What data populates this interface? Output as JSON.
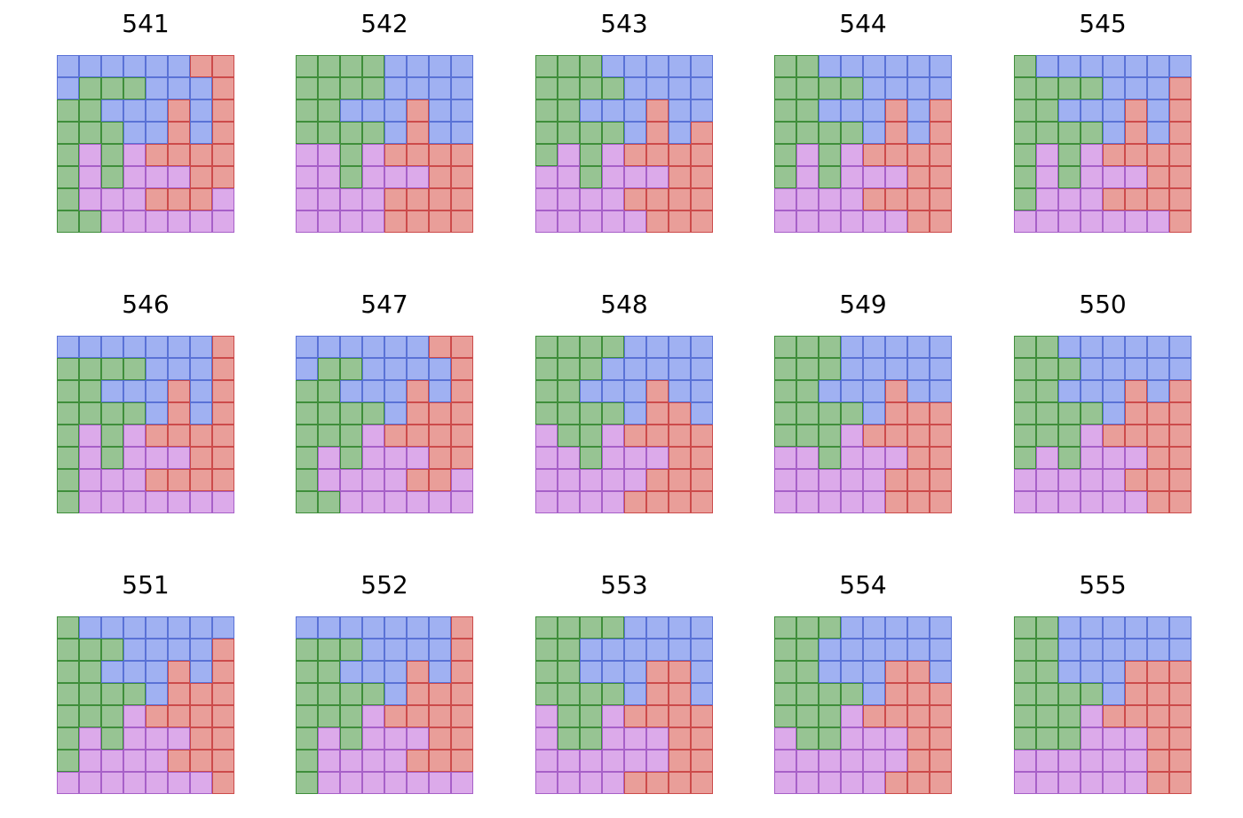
{
  "colors": {
    "B": {
      "fill": "#a0b1f2",
      "stroke": "#5a72d6"
    },
    "G": {
      "fill": "#97c493",
      "stroke": "#3f8e3b"
    },
    "R": {
      "fill": "#e99e99",
      "stroke": "#cc4b4b"
    },
    "P": {
      "fill": "#dcaaea",
      "stroke": "#a760c8"
    }
  },
  "panels": [
    {
      "title": "541",
      "grid": [
        "BBBBBBRR",
        "BGGGBBBR",
        "GGBBBRBR",
        "GGGBBRBR",
        "GPGPRRRR",
        "GPGPPPRR",
        "GPPPRRRP",
        "GGPPPPPP"
      ]
    },
    {
      "title": "542",
      "grid": [
        "GGGGBBBB",
        "GGGGBBBB",
        "GGBBBRBB",
        "GGGGBRBB",
        "PPGPRRRR",
        "PPGPPPRR",
        "PPPPRRRR",
        "PPPPRRRR"
      ]
    },
    {
      "title": "543",
      "grid": [
        "GGGBBBBB",
        "GGGGBBBB",
        "GGBBBRBB",
        "GGGGBRBR",
        "GPGPRRRR",
        "PPGPPPRR",
        "PPPPRRRR",
        "PPPPPRRR"
      ]
    },
    {
      "title": "544",
      "grid": [
        "GGBBBBBB",
        "GGGGBBBB",
        "GGBBBRBR",
        "GGGGBRBR",
        "GPGPRRRR",
        "GPGPPPRR",
        "PPPPRRRR",
        "PPPPPPRR"
      ]
    },
    {
      "title": "545",
      "grid": [
        "GBBBBBBB",
        "GGGGBBBR",
        "GGBBBRBR",
        "GGGGBRBR",
        "GPGPRRRR",
        "GPGPPPRR",
        "GPPPRRRR",
        "PPPPPPPR"
      ]
    },
    {
      "title": "546",
      "grid": [
        "BBBBBBBR",
        "GGGGBBBR",
        "GGBBBRBR",
        "GGGGBRBR",
        "GPGPRRRR",
        "GPGPPPRR",
        "GPPPRRRR",
        "GPPPPPPP"
      ]
    },
    {
      "title": "547",
      "grid": [
        "BBBBBBRR",
        "BGGBBBBR",
        "GGBBBRBR",
        "GGGGBRRR",
        "GGGPRRRR",
        "GPGPPPRR",
        "GPPPPRRP",
        "GGPPPPPP"
      ]
    },
    {
      "title": "548",
      "grid": [
        "GGGGBBBB",
        "GGGBBBBB",
        "GGBBBRBB",
        "GGGGBRRB",
        "PGGPRRRR",
        "PPGPPPRR",
        "PPPPPRRR",
        "PPPPRRRR"
      ]
    },
    {
      "title": "549",
      "grid": [
        "GGGBBBBB",
        "GGGBBBBB",
        "GGBBBRBB",
        "GGGGBRRR",
        "GGGPRRRR",
        "PPGPPPRR",
        "PPPPPRRR",
        "PPPPPRRR"
      ]
    },
    {
      "title": "550",
      "grid": [
        "GGBBBBBB",
        "GGGBBBBB",
        "GGBBBRBR",
        "GGGGBRRR",
        "GGGPRRRR",
        "GPGPPPRR",
        "PPPPPRRR",
        "PPPPPPRR"
      ]
    },
    {
      "title": "551",
      "grid": [
        "GBBBBBBB",
        "GGGBBBBR",
        "GGBBBRBR",
        "GGGGBRRR",
        "GGGPRRRR",
        "GPGPPPRR",
        "GPPPPRRR",
        "PPPPPPPR"
      ]
    },
    {
      "title": "552",
      "grid": [
        "BBBBBBBR",
        "GGGBBBBR",
        "GGBBBRBR",
        "GGGGBRRR",
        "GGGPRRRR",
        "GPGPPPRR",
        "GPPPPRRR",
        "GPPPPPPP"
      ]
    },
    {
      "title": "553",
      "grid": [
        "GGGGBBBB",
        "GGBBBBBB",
        "GGBBBRRB",
        "GGGGBRRB",
        "PGGPRRRR",
        "PGGPPPRR",
        "PPPPPPRR",
        "PPPPRRRR"
      ]
    },
    {
      "title": "554",
      "grid": [
        "GGGBBBBB",
        "GGBBBBBB",
        "GGBBBRRB",
        "GGGGBRRR",
        "GGGPRRRR",
        "PGGPPPRR",
        "PPPPPPRR",
        "PPPPPRRR"
      ]
    },
    {
      "title": "555",
      "grid": [
        "GGBBBBBB",
        "GGBBBBBB",
        "GGBBBRRR",
        "GGGGBRRR",
        "GGGPRRRR",
        "GGGPPPRR",
        "PPPPPPRR",
        "PPPPPPRR"
      ]
    }
  ]
}
